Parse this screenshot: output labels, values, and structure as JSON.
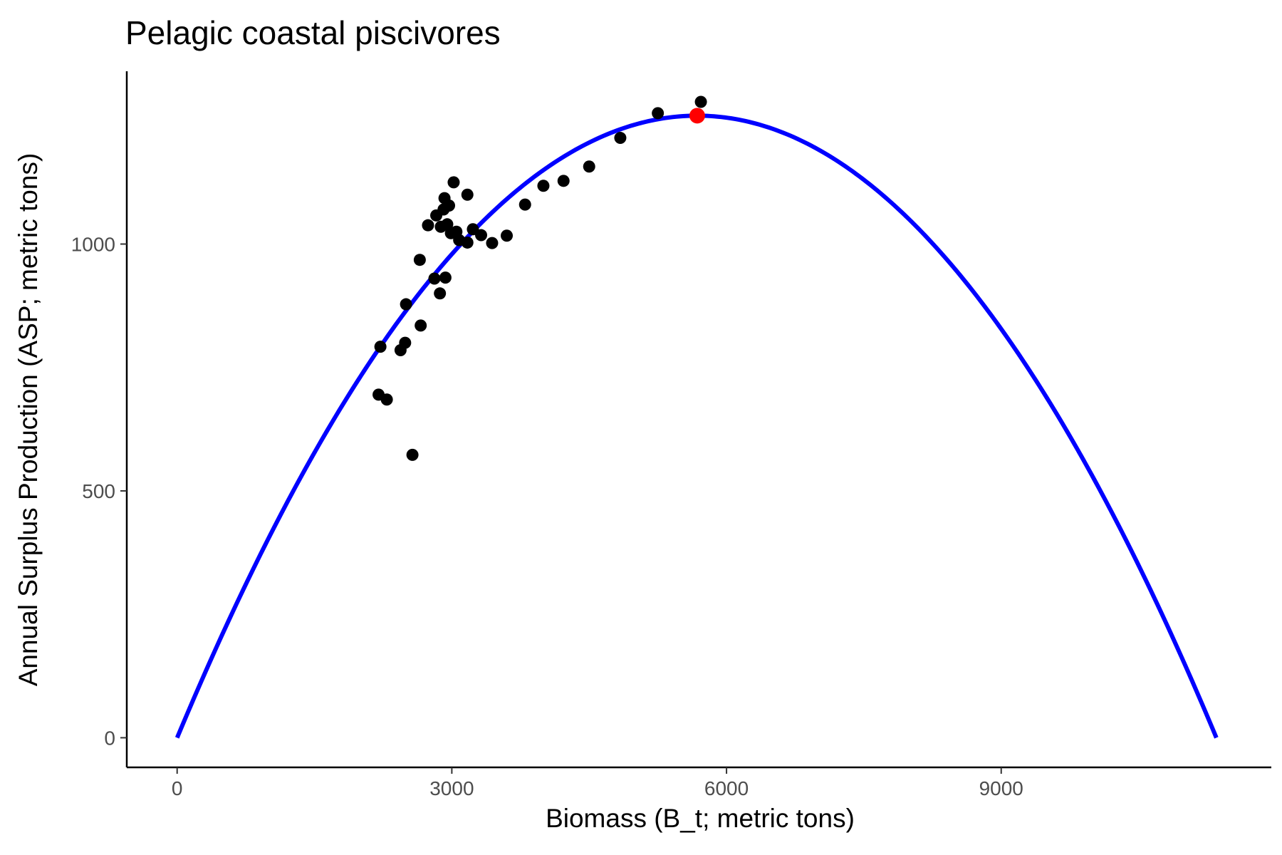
{
  "chart_data": {
    "type": "scatter",
    "title": "Pelagic coastal piscivores",
    "xlabel": "Biomass (B_t; metric tons)",
    "ylabel": "Annual Surplus Production (ASP; metric tons)",
    "xlim": [
      -550,
      11950
    ],
    "ylim": [
      -60,
      1350
    ],
    "x_ticks": [
      0,
      3000,
      6000,
      9000
    ],
    "y_ticks": [
      0,
      500,
      1000
    ],
    "grid": false,
    "legend": "none",
    "colors": {
      "points": "#000000",
      "curve": "#0000ff",
      "highlight": "#ff0000",
      "axis": "#000000",
      "tick_label": "#4d4d4d"
    },
    "series": [
      {
        "type": "scatter",
        "points": [
          [
            2200,
            695
          ],
          [
            2220,
            792
          ],
          [
            2290,
            685
          ],
          [
            2440,
            785
          ],
          [
            2490,
            800
          ],
          [
            2500,
            878
          ],
          [
            2570,
            573
          ],
          [
            2650,
            968
          ],
          [
            2660,
            835
          ],
          [
            2740,
            1038
          ],
          [
            2810,
            930
          ],
          [
            2830,
            1058
          ],
          [
            2870,
            900
          ],
          [
            2880,
            1035
          ],
          [
            2910,
            1070
          ],
          [
            2920,
            1093
          ],
          [
            2930,
            932
          ],
          [
            2950,
            1040
          ],
          [
            2970,
            1078
          ],
          [
            2990,
            1022
          ],
          [
            3020,
            1125
          ],
          [
            3050,
            1025
          ],
          [
            3080,
            1008
          ],
          [
            3170,
            1003
          ],
          [
            3170,
            1100
          ],
          [
            3230,
            1030
          ],
          [
            3320,
            1018
          ],
          [
            3440,
            1002
          ],
          [
            3600,
            1017
          ],
          [
            3800,
            1080
          ],
          [
            4000,
            1118
          ],
          [
            4220,
            1128
          ],
          [
            4500,
            1157
          ],
          [
            4840,
            1215
          ],
          [
            5250,
            1265
          ],
          [
            5720,
            1288
          ]
        ]
      },
      {
        "type": "line",
        "function": "surplus production curve",
        "x_max": 11350,
        "peak": [
          5680,
          1260
        ]
      },
      {
        "type": "highlight_point",
        "point": [
          5680,
          1260
        ]
      }
    ]
  }
}
